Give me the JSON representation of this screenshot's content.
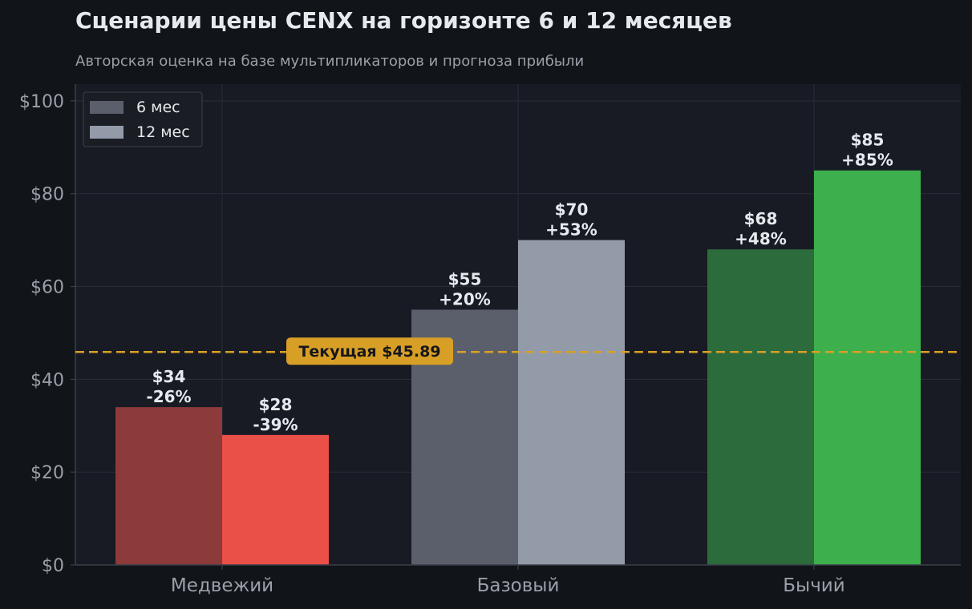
{
  "chart_data": {
    "type": "bar",
    "title": "Сценарии цены CENX на горизонте 6 и 12 месяцев",
    "subtitle": "Авторская оценка на базе мультипликаторов и прогноза прибыли",
    "categories": [
      "Медвежий",
      "Базовый",
      "Бычий"
    ],
    "series": [
      {
        "name": "6 мес",
        "values": [
          34,
          55,
          68
        ],
        "labels": [
          "$34\n-26%",
          "$55\n+20%",
          "$68\n+48%"
        ]
      },
      {
        "name": "12 мес",
        "values": [
          28,
          70,
          85
        ],
        "labels": [
          "$28\n-39%",
          "$70\n+53%",
          "$85\n+85%"
        ]
      }
    ],
    "bar_colors": [
      [
        "#8c3a3a",
        "#ea4f48"
      ],
      [
        "#5a5f6b",
        "#939ba9"
      ],
      [
        "#2c6b3c",
        "#3daf4c"
      ]
    ],
    "legend_colors": [
      "#5a5f6b",
      "#939ba9"
    ],
    "ylim": [
      0,
      103.6
    ],
    "y_ticks": [
      0,
      20,
      40,
      60,
      80,
      100
    ],
    "y_tick_labels": [
      "$0",
      "$20",
      "$40",
      "$60",
      "$80",
      "$100"
    ],
    "reference_line": {
      "value": 45.89,
      "label": "Текущая $45.89",
      "color": "#d89f26"
    },
    "grid": true,
    "legend_position": "top-left",
    "colors": {
      "background": "#111418",
      "plot_background": "#181b23",
      "grid": "#272b35",
      "tick_text": "#9aa0aa",
      "label_text": "#e6e9ee"
    }
  }
}
